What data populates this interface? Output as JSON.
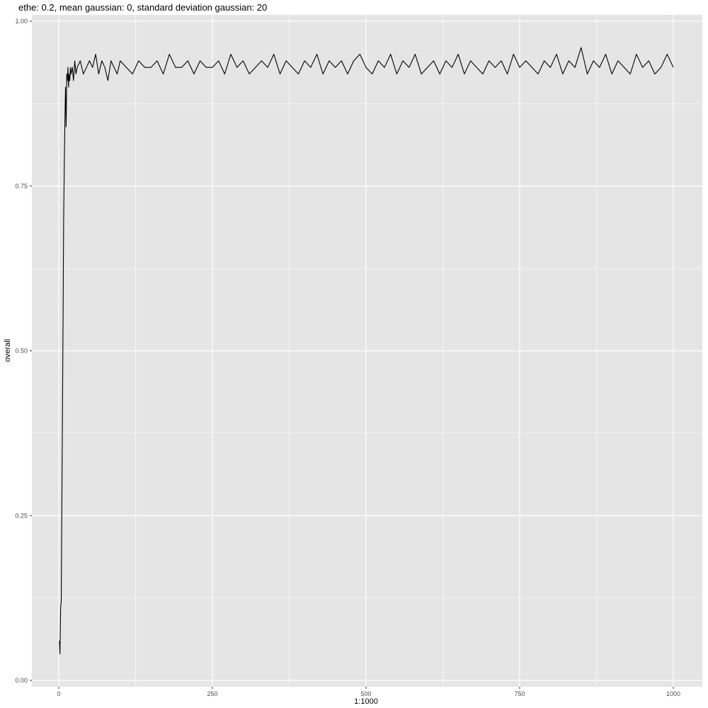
{
  "chart_data": {
    "type": "line",
    "title": "ethe: 0.2, mean gaussian: 0, standard deviation gaussian: 20",
    "xlabel": "1:1000",
    "ylabel": "overall",
    "xlim": [
      0,
      1000
    ],
    "ylim": [
      0,
      1
    ],
    "x_ticks": [
      0,
      250,
      500,
      750,
      1000
    ],
    "x_tick_labels": [
      "0",
      "250",
      "500",
      "750",
      "1000"
    ],
    "y_ticks": [
      0,
      0.25,
      0.5,
      0.75,
      1
    ],
    "y_tick_labels": [
      "0.00",
      "0.25",
      "0.50",
      "0.75",
      "1.00"
    ],
    "grid": true,
    "panel_background": "#e5e5e5",
    "grid_color": "#ffffff",
    "line_color": "#000000",
    "series": [
      {
        "x": [
          1,
          2,
          3,
          4,
          5,
          6,
          7,
          8,
          9,
          10,
          11,
          12,
          13,
          14,
          15,
          16,
          17,
          18,
          19,
          20,
          22,
          24,
          26,
          28,
          30,
          35,
          40,
          45,
          50,
          55,
          60,
          65,
          70,
          75,
          80,
          85,
          90,
          95,
          100,
          110,
          120,
          130,
          140,
          150,
          160,
          170,
          180,
          190,
          200,
          210,
          220,
          230,
          240,
          250,
          260,
          270,
          280,
          290,
          300,
          310,
          320,
          330,
          340,
          350,
          360,
          370,
          380,
          390,
          400,
          410,
          420,
          430,
          440,
          450,
          460,
          470,
          480,
          490,
          500,
          510,
          520,
          530,
          540,
          550,
          560,
          570,
          580,
          590,
          600,
          610,
          620,
          630,
          640,
          650,
          660,
          670,
          680,
          690,
          700,
          710,
          720,
          730,
          740,
          750,
          760,
          770,
          780,
          790,
          800,
          810,
          820,
          830,
          840,
          850,
          860,
          870,
          880,
          890,
          900,
          910,
          920,
          930,
          940,
          950,
          960,
          970,
          980,
          990,
          1000
        ],
        "values": [
          0.06,
          0.04,
          0.11,
          0.12,
          0.25,
          0.4,
          0.55,
          0.7,
          0.78,
          0.85,
          0.9,
          0.84,
          0.92,
          0.91,
          0.93,
          0.9,
          0.92,
          0.91,
          0.93,
          0.92,
          0.93,
          0.91,
          0.94,
          0.92,
          0.93,
          0.94,
          0.92,
          0.93,
          0.94,
          0.93,
          0.95,
          0.92,
          0.94,
          0.93,
          0.91,
          0.94,
          0.93,
          0.92,
          0.94,
          0.93,
          0.92,
          0.94,
          0.93,
          0.93,
          0.94,
          0.92,
          0.95,
          0.93,
          0.93,
          0.94,
          0.92,
          0.94,
          0.93,
          0.93,
          0.94,
          0.92,
          0.95,
          0.93,
          0.94,
          0.92,
          0.93,
          0.94,
          0.93,
          0.95,
          0.92,
          0.94,
          0.93,
          0.92,
          0.94,
          0.93,
          0.95,
          0.92,
          0.94,
          0.93,
          0.94,
          0.92,
          0.94,
          0.95,
          0.93,
          0.92,
          0.94,
          0.93,
          0.95,
          0.92,
          0.94,
          0.93,
          0.95,
          0.92,
          0.93,
          0.94,
          0.92,
          0.94,
          0.93,
          0.95,
          0.92,
          0.94,
          0.93,
          0.92,
          0.94,
          0.93,
          0.94,
          0.92,
          0.95,
          0.93,
          0.94,
          0.93,
          0.92,
          0.94,
          0.93,
          0.95,
          0.92,
          0.94,
          0.93,
          0.96,
          0.92,
          0.94,
          0.93,
          0.95,
          0.92,
          0.94,
          0.93,
          0.92,
          0.95,
          0.93,
          0.94,
          0.92,
          0.93,
          0.95,
          0.93
        ]
      }
    ]
  }
}
